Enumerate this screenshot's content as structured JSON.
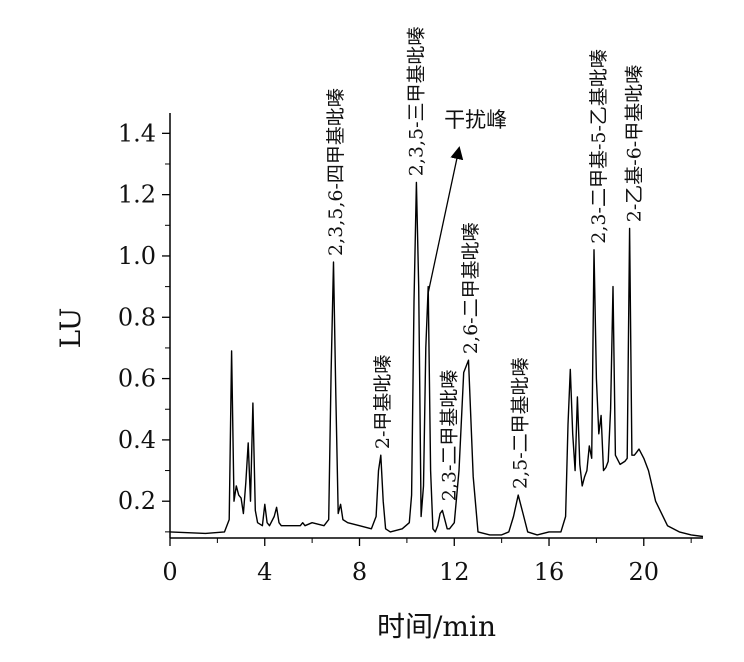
{
  "chart_data": {
    "type": "line",
    "title": "",
    "xlabel": "时间/min",
    "ylabel": "LU",
    "xlim": [
      0,
      22.5
    ],
    "ylim": [
      0.08,
      1.45
    ],
    "x_ticks": [
      "0",
      "4",
      "8",
      "12",
      "16",
      "20"
    ],
    "x_tick_values": [
      0,
      4,
      8,
      12,
      16,
      20
    ],
    "y_ticks": [
      "0.2",
      "0.4",
      "0.6",
      "0.8",
      "1.0",
      "1.2",
      "1.4"
    ],
    "y_tick_values": [
      0.2,
      0.4,
      0.6,
      0.8,
      1.0,
      1.2,
      1.4
    ],
    "grid": false,
    "line_color": "#000000",
    "series": [
      {
        "x": [
          0,
          1.5,
          2.3,
          2.5,
          2.6,
          2.7,
          2.8,
          2.9,
          3.0,
          3.1,
          3.2,
          3.3,
          3.4,
          3.5,
          3.6,
          3.7,
          3.9,
          4.0,
          4.1,
          4.2,
          4.4,
          4.5,
          4.6,
          4.7,
          5.0,
          5.5,
          5.6,
          5.7,
          6.0,
          6.5,
          6.7,
          6.8,
          6.9,
          7.0,
          7.1,
          7.2,
          7.3,
          7.5,
          8.0,
          8.5,
          8.7,
          8.8,
          8.9,
          9.0,
          9.1,
          9.3,
          9.8,
          10.1,
          10.2,
          10.3,
          10.4,
          10.5,
          10.6,
          10.7,
          10.8,
          10.9,
          11.0,
          11.1,
          11.2,
          11.3,
          11.4,
          11.5,
          11.6,
          11.7,
          11.8,
          12.0,
          12.2,
          12.4,
          12.6,
          12.8,
          13.0,
          13.5,
          14.0,
          14.3,
          14.5,
          14.7,
          14.9,
          15.1,
          15.5,
          16.0,
          16.5,
          16.7,
          16.8,
          16.9,
          17.0,
          17.1,
          17.2,
          17.3,
          17.4,
          17.5,
          17.6,
          17.7,
          17.8,
          17.9,
          18.0,
          18.1,
          18.2,
          18.3,
          18.4,
          18.5,
          18.6,
          18.7,
          18.8,
          19.0,
          19.2,
          19.3,
          19.4,
          19.5,
          19.6,
          19.7,
          19.8,
          20.0,
          20.2,
          20.5,
          21.0,
          21.5,
          22.0,
          22.5
        ],
        "y": [
          0.1,
          0.095,
          0.1,
          0.14,
          0.69,
          0.2,
          0.25,
          0.22,
          0.21,
          0.16,
          0.26,
          0.39,
          0.2,
          0.52,
          0.17,
          0.13,
          0.12,
          0.19,
          0.13,
          0.12,
          0.15,
          0.18,
          0.13,
          0.12,
          0.12,
          0.12,
          0.13,
          0.12,
          0.13,
          0.12,
          0.14,
          0.62,
          0.98,
          0.55,
          0.16,
          0.19,
          0.14,
          0.13,
          0.12,
          0.11,
          0.15,
          0.3,
          0.35,
          0.2,
          0.11,
          0.1,
          0.11,
          0.13,
          0.22,
          0.85,
          1.24,
          0.9,
          0.15,
          0.25,
          0.7,
          0.9,
          0.3,
          0.11,
          0.1,
          0.12,
          0.16,
          0.17,
          0.14,
          0.11,
          0.11,
          0.13,
          0.3,
          0.62,
          0.66,
          0.28,
          0.1,
          0.09,
          0.09,
          0.1,
          0.15,
          0.22,
          0.16,
          0.1,
          0.09,
          0.1,
          0.1,
          0.15,
          0.45,
          0.63,
          0.42,
          0.3,
          0.54,
          0.32,
          0.25,
          0.28,
          0.3,
          0.38,
          0.34,
          1.02,
          0.6,
          0.42,
          0.48,
          0.3,
          0.31,
          0.33,
          0.5,
          0.9,
          0.35,
          0.32,
          0.33,
          0.34,
          1.09,
          0.35,
          0.35,
          0.36,
          0.37,
          0.34,
          0.3,
          0.2,
          0.12,
          0.1,
          0.09,
          0.085
        ]
      }
    ],
    "annotations": [
      {
        "text": "2,3,5,6-四甲基吡嗪",
        "x": 7.0,
        "y": 1.0,
        "rotated": true
      },
      {
        "text": "2-甲基吡嗪",
        "x": 9.0,
        "y": 0.37,
        "rotated": true
      },
      {
        "text": "2,3,5-三甲基吡嗪",
        "x": 10.4,
        "y": 1.26,
        "rotated": true
      },
      {
        "text": "2,3-二甲基吡嗪",
        "x": 11.8,
        "y": 0.2,
        "rotated": true
      },
      {
        "text": "2,6-二甲基吡嗪",
        "x": 12.7,
        "y": 0.68,
        "rotated": true
      },
      {
        "text": "2,5-二甲基吡嗪",
        "x": 14.8,
        "y": 0.24,
        "rotated": true
      },
      {
        "text": "2,3-二甲基-5-乙基吡嗪",
        "x": 18.1,
        "y": 1.04,
        "rotated": true
      },
      {
        "text": "2-乙基-6-甲基吡嗪",
        "x": 19.6,
        "y": 1.11,
        "rotated": true
      },
      {
        "text": "干扰峰",
        "x": 12.9,
        "y": 1.42,
        "rotated": false
      }
    ],
    "arrow": {
      "from_x": 10.9,
      "from_y": 0.88,
      "to_x": 12.2,
      "to_y": 1.35
    }
  }
}
